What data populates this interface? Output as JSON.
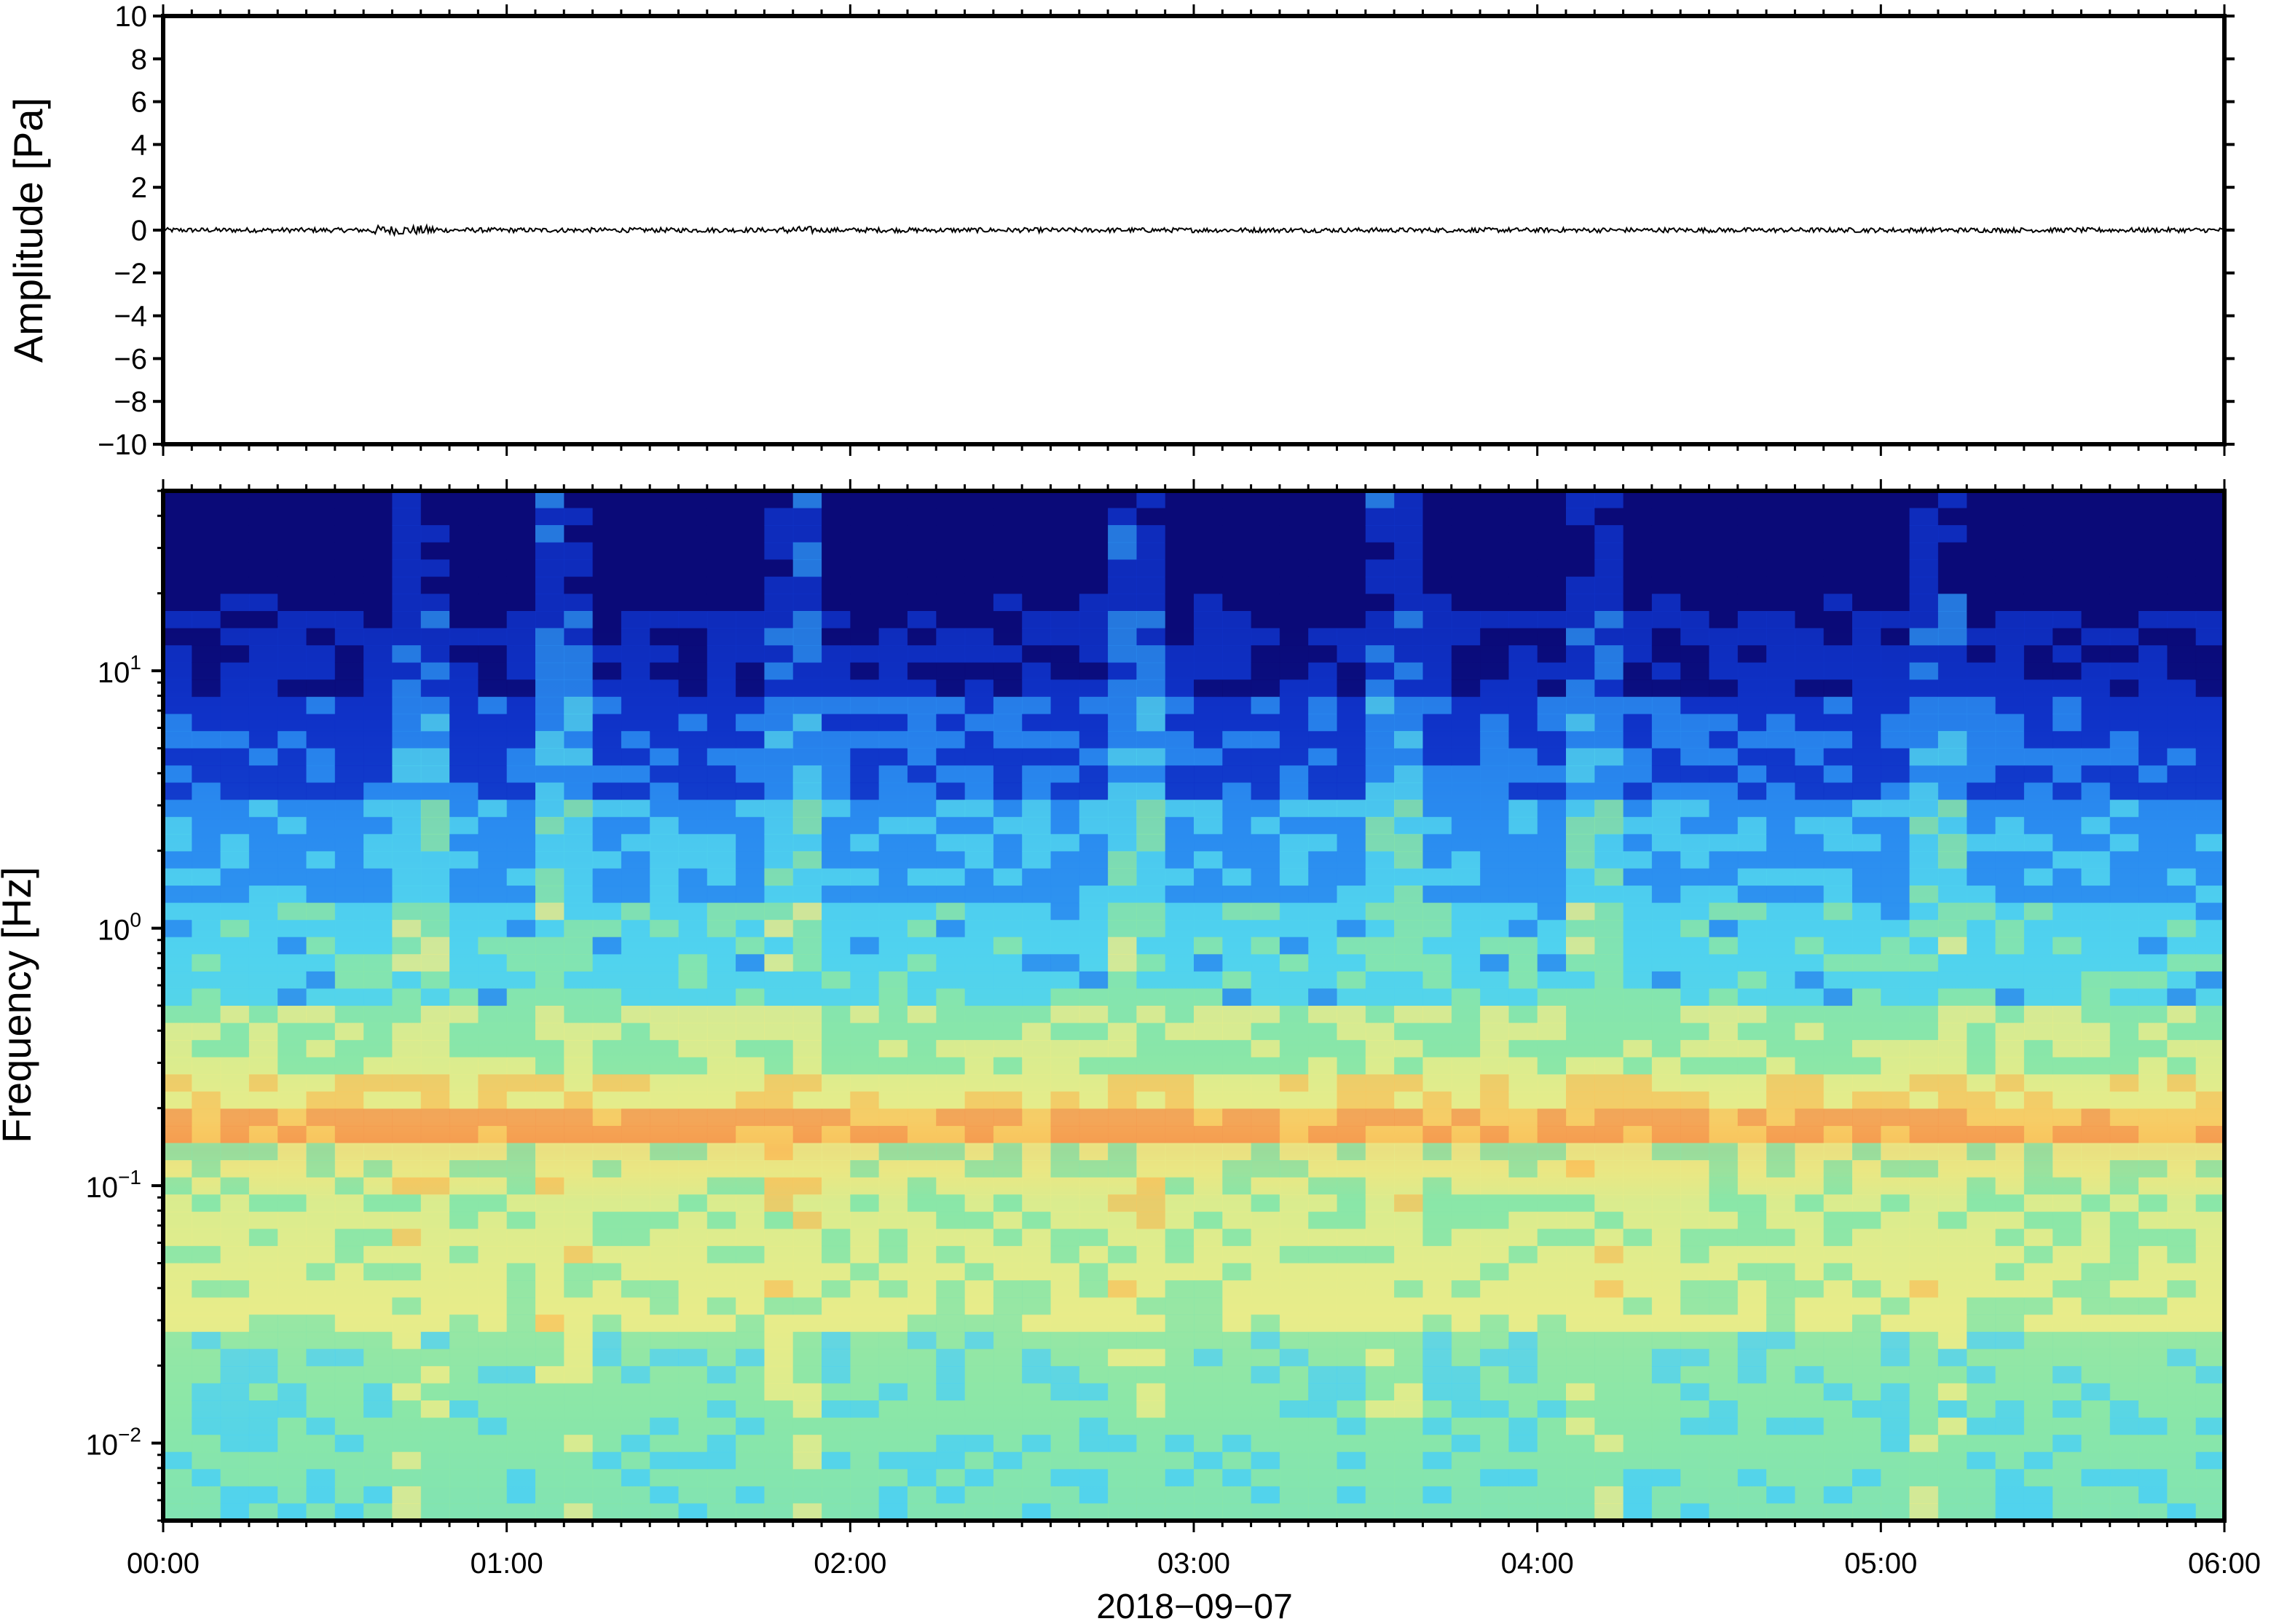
{
  "chart_data": [
    {
      "type": "line",
      "panel": "waveform",
      "ylabel": "Amplitude [Pa]",
      "ylim": [
        -10,
        10
      ],
      "yticks": [
        10,
        8,
        6,
        4,
        2,
        0,
        -2,
        -4,
        -6,
        -8,
        -10
      ],
      "ytick_labels": [
        "10",
        "8",
        "6",
        "4",
        "2",
        "0",
        "−2",
        "−4",
        "−6",
        "−8",
        "−10"
      ],
      "xlim": [
        "00:00",
        "06:00"
      ],
      "series_description": "near-zero noise trace, peak amplitude about 0.2 Pa",
      "series": [
        {
          "x": [
            "00:00",
            "01:00",
            "02:00",
            "03:00",
            "04:00",
            "05:00",
            "06:00"
          ],
          "y": [
            0,
            0,
            0,
            0,
            0,
            0,
            0
          ]
        }
      ],
      "color": "#000000"
    },
    {
      "type": "heatmap",
      "panel": "spectrogram",
      "ylabel": "Frequency [Hz]",
      "yscale": "log",
      "ylim": [
        0.005,
        50
      ],
      "yticks": [
        {
          "base": "10",
          "exp": "1"
        },
        {
          "base": "10",
          "exp": "0"
        },
        {
          "base": "10",
          "exp": "−1"
        },
        {
          "base": "10",
          "exp": "−2"
        }
      ],
      "xlabel": "2018−09−07",
      "xticks": [
        "00:00",
        "01:00",
        "02:00",
        "03:00",
        "04:00",
        "05:00",
        "06:00"
      ],
      "colormap": "jet-like",
      "colors": [
        "#0a0a78",
        "#0f32c8",
        "#2a8cf0",
        "#50d2ee",
        "#8ae6a8",
        "#e8ec8a",
        "#f8c860",
        "#f59a50"
      ],
      "features": "microseism band near 0.15–0.2 Hz shows highest power (orange); high frequencies above ~10 Hz lowest power (dark blue)"
    }
  ]
}
